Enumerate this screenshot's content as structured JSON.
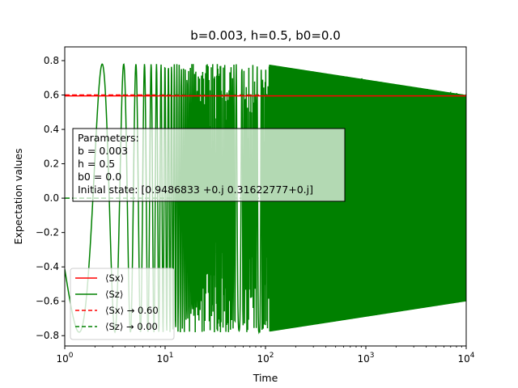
{
  "chart_data": {
    "type": "line",
    "title": "b=0.003, h=0.5, b0=0.0",
    "xlabel": "Time",
    "ylabel": "Expectation values",
    "xscale": "log",
    "xlim": [
      1,
      10000
    ],
    "ylim": [
      -0.86,
      0.88
    ],
    "xticks": [
      {
        "value": 1,
        "base": "10",
        "exp": "0"
      },
      {
        "value": 10,
        "base": "10",
        "exp": "1"
      },
      {
        "value": 100,
        "base": "10",
        "exp": "2"
      },
      {
        "value": 1000,
        "base": "10",
        "exp": "3"
      },
      {
        "value": 10000,
        "base": "10",
        "exp": "4"
      }
    ],
    "yticks": [
      {
        "value": 0.8,
        "label": "0.8"
      },
      {
        "value": 0.6,
        "label": "0.6"
      },
      {
        "value": 0.4,
        "label": "0.4"
      },
      {
        "value": 0.2,
        "label": "0.2"
      },
      {
        "value": 0.0,
        "label": "0.0"
      },
      {
        "value": -0.2,
        "label": "−0.2"
      },
      {
        "value": -0.4,
        "label": "−0.4"
      },
      {
        "value": -0.6,
        "label": "−0.6"
      },
      {
        "value": -0.8,
        "label": "−0.8"
      }
    ],
    "grid": false,
    "legend_position": "lower-left",
    "series": [
      {
        "name": "⟨Sx⟩",
        "color": "#ff0000",
        "style": "solid",
        "kind": "sx",
        "value": 0.595
      },
      {
        "name": "⟨Sz⟩",
        "color": "#008000",
        "style": "solid",
        "kind": "sz",
        "amplitude_early": 0.78,
        "amplitude_late": 0.6
      },
      {
        "name": "⟨Sx⟩ → 0.60",
        "color": "#ff0000",
        "style": "dashed",
        "kind": "hline",
        "value": 0.6
      },
      {
        "name": "⟨Sz⟩ → 0.00",
        "color": "#008000",
        "style": "dashed",
        "kind": "hline",
        "value": 0.0
      }
    ],
    "annotation": {
      "lines": [
        "Parameters:",
        "b = 0.003",
        "h = 0.5",
        "b0 = 0.0",
        "Initial state: [0.9486833 +0.j 0.31622777+0.j]"
      ],
      "position": "center-left"
    }
  }
}
